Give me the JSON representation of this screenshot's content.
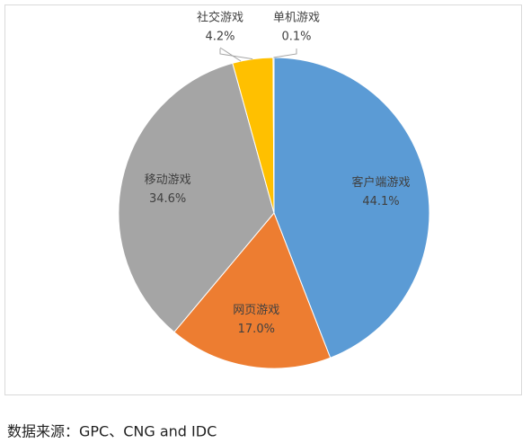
{
  "chart_data": {
    "type": "pie",
    "categories": [
      "客户端游戏",
      "网页游戏",
      "移动游戏",
      "社交游戏",
      "单机游戏"
    ],
    "values": [
      44.1,
      17.0,
      34.6,
      4.2,
      0.1
    ],
    "value_labels": [
      "44.1%",
      "17.0%",
      "34.6%",
      "4.2%",
      "0.1%"
    ],
    "colors": [
      "#5b9bd5",
      "#ed7d31",
      "#a5a5a5",
      "#ffc000",
      "#4472c4"
    ],
    "source": "数据来源：GPC、CNG and IDC"
  }
}
